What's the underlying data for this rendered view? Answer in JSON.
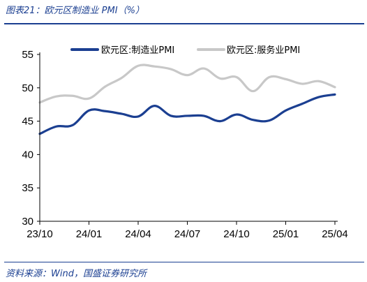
{
  "figure": {
    "title": "图表21：欧元区制造业 PMI（%）",
    "source": "资料来源：Wind，国盛证券研究所"
  },
  "chart_data": {
    "type": "line",
    "x_ticks": [
      "23/10",
      "24/01",
      "24/04",
      "24/07",
      "24/10",
      "25/01",
      "25/04"
    ],
    "ylim": [
      30,
      55
    ],
    "y_ticks": [
      30,
      35,
      40,
      45,
      50,
      55
    ],
    "grid": false,
    "legend_position": "top",
    "x": [
      "23/10",
      "23/11",
      "23/12",
      "24/01",
      "24/02",
      "24/03",
      "24/04",
      "24/05",
      "24/06",
      "24/07",
      "24/08",
      "24/09",
      "24/10",
      "24/11",
      "24/12",
      "25/01",
      "25/02",
      "25/03",
      "25/04"
    ],
    "series": [
      {
        "name": "欧元区:制造业PMI",
        "color": "#1b3f91",
        "values": [
          43.1,
          44.2,
          44.4,
          46.6,
          46.5,
          46.1,
          45.7,
          47.3,
          45.8,
          45.8,
          45.8,
          45.0,
          46.0,
          45.2,
          45.1,
          46.6,
          47.6,
          48.6,
          49.0
        ]
      },
      {
        "name": "欧元区:服务业PMI",
        "color": "#c8c8c8",
        "values": [
          47.8,
          48.7,
          48.8,
          48.4,
          50.2,
          51.5,
          53.3,
          53.2,
          52.8,
          51.9,
          52.9,
          51.4,
          51.6,
          49.5,
          51.6,
          51.3,
          50.6,
          51.0,
          50.1
        ]
      }
    ]
  }
}
